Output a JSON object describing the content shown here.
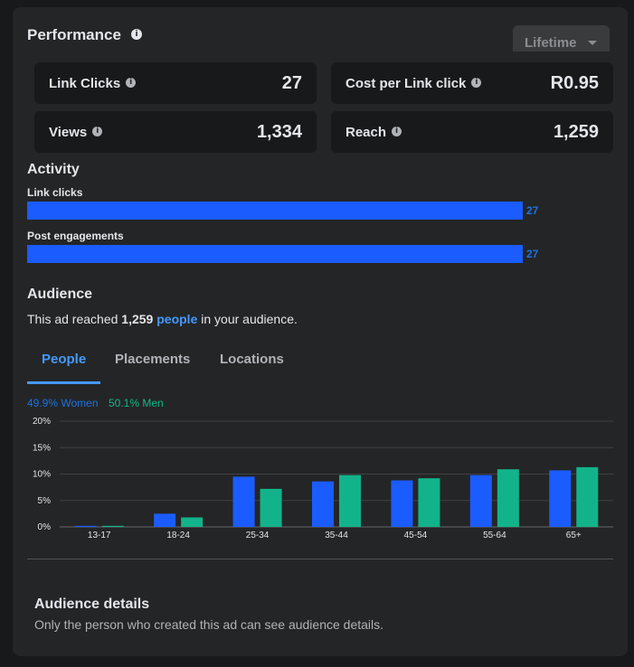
{
  "performance": {
    "title": "Performance",
    "timeframe": "Lifetime",
    "metrics": [
      {
        "label": "Link Clicks",
        "value": "27"
      },
      {
        "label": "Cost per Link click",
        "value": "R0.95"
      },
      {
        "label": "Views",
        "value": "1,334"
      },
      {
        "label": "Reach",
        "value": "1,259"
      }
    ]
  },
  "activity": {
    "title": "Activity",
    "rows": [
      {
        "label": "Link clicks",
        "value": "27"
      },
      {
        "label": "Post engagements",
        "value": "27"
      }
    ]
  },
  "audience": {
    "title": "Audience",
    "summary_prefix": "This ad reached ",
    "summary_count": "1,259",
    "summary_link": "people",
    "summary_suffix": " in your audience.",
    "tabs": [
      "People",
      "Placements",
      "Locations"
    ],
    "active_tab": "People",
    "legend_women": "49.9% Women",
    "legend_men": "50.1% Men"
  },
  "chart_data": {
    "type": "bar",
    "categories": [
      "13-17",
      "18-24",
      "25-34",
      "35-44",
      "45-54",
      "55-64",
      "65+"
    ],
    "series": [
      {
        "name": "Women",
        "color": "#1b5cff",
        "values": [
          0.2,
          2.5,
          9.5,
          8.6,
          8.8,
          9.8,
          10.7
        ]
      },
      {
        "name": "Men",
        "color": "#12b38a",
        "values": [
          0.2,
          1.8,
          7.2,
          9.8,
          9.2,
          10.9,
          11.3
        ]
      }
    ],
    "yticks": [
      "0%",
      "5%",
      "10%",
      "15%",
      "20%"
    ],
    "ylim": [
      0,
      20
    ],
    "grid": true
  },
  "details": {
    "title": "Audience details",
    "text": "Only the person who created this ad can see audience details."
  },
  "colors": {
    "accent": "#4599ff",
    "women": "#1b5cff",
    "men": "#12b38a"
  }
}
